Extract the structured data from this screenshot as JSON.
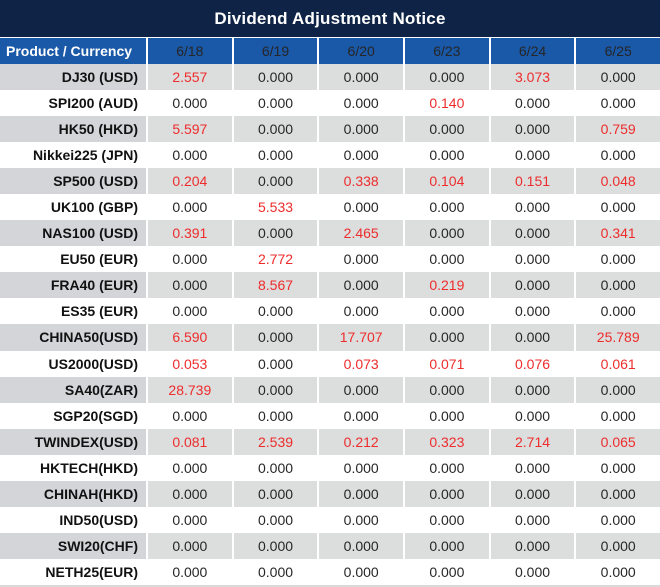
{
  "title": "Dividend Adjustment Notice",
  "colors": {
    "title_bar_bg": "#0e2345",
    "header_bg": "#1a58a8",
    "row_gray_label": "#d3d5d8",
    "row_gray_value": "#dcdddd",
    "row_white": "#ffffff",
    "value_zero_text": "#262626",
    "value_nonzero_text": "#ee2c2c",
    "header_text": "#ffffff"
  },
  "table": {
    "columns": [
      "Product / Currency",
      "6/18",
      "6/19",
      "6/20",
      "6/23",
      "6/24",
      "6/25"
    ],
    "rows": [
      {
        "product": "DJ30 (USD)",
        "values": [
          "2.557",
          "0.000",
          "0.000",
          "0.000",
          "3.073",
          "0.000"
        ]
      },
      {
        "product": "SPI200 (AUD)",
        "values": [
          "0.000",
          "0.000",
          "0.000",
          "0.140",
          "0.000",
          "0.000"
        ]
      },
      {
        "product": "HK50 (HKD)",
        "values": [
          "5.597",
          "0.000",
          "0.000",
          "0.000",
          "0.000",
          "0.759"
        ]
      },
      {
        "product": "Nikkei225 (JPN)",
        "values": [
          "0.000",
          "0.000",
          "0.000",
          "0.000",
          "0.000",
          "0.000"
        ]
      },
      {
        "product": "SP500 (USD)",
        "values": [
          "0.204",
          "0.000",
          "0.338",
          "0.104",
          "0.151",
          "0.048"
        ]
      },
      {
        "product": "UK100 (GBP)",
        "values": [
          "0.000",
          "5.533",
          "0.000",
          "0.000",
          "0.000",
          "0.000"
        ]
      },
      {
        "product": "NAS100 (USD)",
        "values": [
          "0.391",
          "0.000",
          "2.465",
          "0.000",
          "0.000",
          "0.341"
        ]
      },
      {
        "product": "EU50 (EUR)",
        "values": [
          "0.000",
          "2.772",
          "0.000",
          "0.000",
          "0.000",
          "0.000"
        ]
      },
      {
        "product": "FRA40 (EUR)",
        "values": [
          "0.000",
          "8.567",
          "0.000",
          "0.219",
          "0.000",
          "0.000"
        ]
      },
      {
        "product": "ES35 (EUR)",
        "values": [
          "0.000",
          "0.000",
          "0.000",
          "0.000",
          "0.000",
          "0.000"
        ]
      },
      {
        "product": "CHINA50(USD)",
        "values": [
          "6.590",
          "0.000",
          "17.707",
          "0.000",
          "0.000",
          "25.789"
        ]
      },
      {
        "product": "US2000(USD)",
        "values": [
          "0.053",
          "0.000",
          "0.073",
          "0.071",
          "0.076",
          "0.061"
        ]
      },
      {
        "product": "SA40(ZAR)",
        "values": [
          "28.739",
          "0.000",
          "0.000",
          "0.000",
          "0.000",
          "0.000"
        ]
      },
      {
        "product": "SGP20(SGD)",
        "values": [
          "0.000",
          "0.000",
          "0.000",
          "0.000",
          "0.000",
          "0.000"
        ]
      },
      {
        "product": "TWINDEX(USD)",
        "values": [
          "0.081",
          "2.539",
          "0.212",
          "0.323",
          "2.714",
          "0.065"
        ]
      },
      {
        "product": "HKTECH(HKD)",
        "values": [
          "0.000",
          "0.000",
          "0.000",
          "0.000",
          "0.000",
          "0.000"
        ]
      },
      {
        "product": "CHINAH(HKD)",
        "values": [
          "0.000",
          "0.000",
          "0.000",
          "0.000",
          "0.000",
          "0.000"
        ]
      },
      {
        "product": "IND50(USD)",
        "values": [
          "0.000",
          "0.000",
          "0.000",
          "0.000",
          "0.000",
          "0.000"
        ]
      },
      {
        "product": "SWI20(CHF)",
        "values": [
          "0.000",
          "0.000",
          "0.000",
          "0.000",
          "0.000",
          "0.000"
        ]
      },
      {
        "product": "NETH25(EUR)",
        "values": [
          "0.000",
          "0.000",
          "0.000",
          "0.000",
          "0.000",
          "0.000"
        ]
      }
    ]
  },
  "chart_data": {
    "type": "table",
    "title": "Dividend Adjustment Notice",
    "columns": [
      "Product / Currency",
      "6/18",
      "6/19",
      "6/20",
      "6/23",
      "6/24",
      "6/25"
    ],
    "rows": [
      [
        "DJ30 (USD)",
        2.557,
        0.0,
        0.0,
        0.0,
        3.073,
        0.0
      ],
      [
        "SPI200 (AUD)",
        0.0,
        0.0,
        0.0,
        0.14,
        0.0,
        0.0
      ],
      [
        "HK50 (HKD)",
        5.597,
        0.0,
        0.0,
        0.0,
        0.0,
        0.759
      ],
      [
        "Nikkei225 (JPN)",
        0.0,
        0.0,
        0.0,
        0.0,
        0.0,
        0.0
      ],
      [
        "SP500 (USD)",
        0.204,
        0.0,
        0.338,
        0.104,
        0.151,
        0.048
      ],
      [
        "UK100 (GBP)",
        0.0,
        5.533,
        0.0,
        0.0,
        0.0,
        0.0
      ],
      [
        "NAS100 (USD)",
        0.391,
        0.0,
        2.465,
        0.0,
        0.0,
        0.341
      ],
      [
        "EU50 (EUR)",
        0.0,
        2.772,
        0.0,
        0.0,
        0.0,
        0.0
      ],
      [
        "FRA40 (EUR)",
        0.0,
        8.567,
        0.0,
        0.219,
        0.0,
        0.0
      ],
      [
        "ES35 (EUR)",
        0.0,
        0.0,
        0.0,
        0.0,
        0.0,
        0.0
      ],
      [
        "CHINA50(USD)",
        6.59,
        0.0,
        17.707,
        0.0,
        0.0,
        25.789
      ],
      [
        "US2000(USD)",
        0.053,
        0.0,
        0.073,
        0.071,
        0.076,
        0.061
      ],
      [
        "SA40(ZAR)",
        28.739,
        0.0,
        0.0,
        0.0,
        0.0,
        0.0
      ],
      [
        "SGP20(SGD)",
        0.0,
        0.0,
        0.0,
        0.0,
        0.0,
        0.0
      ],
      [
        "TWINDEX(USD)",
        0.081,
        2.539,
        0.212,
        0.323,
        2.714,
        0.065
      ],
      [
        "HKTECH(HKD)",
        0.0,
        0.0,
        0.0,
        0.0,
        0.0,
        0.0
      ],
      [
        "CHINAH(HKD)",
        0.0,
        0.0,
        0.0,
        0.0,
        0.0,
        0.0
      ],
      [
        "IND50(USD)",
        0.0,
        0.0,
        0.0,
        0.0,
        0.0,
        0.0
      ],
      [
        "SWI20(CHF)",
        0.0,
        0.0,
        0.0,
        0.0,
        0.0,
        0.0
      ],
      [
        "NETH25(EUR)",
        0.0,
        0.0,
        0.0,
        0.0,
        0.0,
        0.0
      ]
    ],
    "legend_position": "none",
    "notes": "Non-zero dividend adjustment values are shown in red; zero values in dark gray. Rows alternate gray/white shading starting with gray."
  }
}
